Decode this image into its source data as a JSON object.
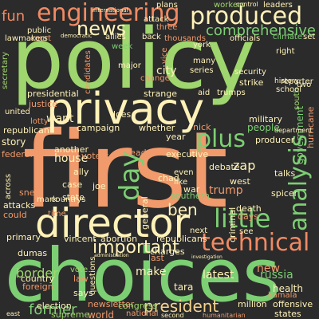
{
  "wordcloud": {
    "words": [
      {
        "text": "first",
        "color": "#f19a6b"
      },
      {
        "text": "policy",
        "color": "#9fd66d"
      },
      {
        "text": "choices",
        "color": "#7ccf73"
      },
      {
        "text": "privacy",
        "color": "#fff2b8"
      },
      {
        "text": "director",
        "color": "#fff2b8"
      },
      {
        "text": "produced",
        "color": "#fff2b8"
      },
      {
        "text": "engineering",
        "color": "#f08a63"
      },
      {
        "text": "technical",
        "color": "#f08a63"
      },
      {
        "text": "little",
        "color": "#7ccf73"
      },
      {
        "text": "analysis",
        "color": "#7ccf73"
      },
      {
        "text": "important",
        "color": "#fff2b8"
      },
      {
        "text": "news",
        "color": "#fff2b8"
      },
      {
        "text": "plus",
        "color": "#7ccf73"
      },
      {
        "text": "comprehensive",
        "color": "#7ccf73"
      },
      {
        "text": "president",
        "color": "#f5d28c"
      },
      {
        "text": "day",
        "color": "#7ccf73"
      },
      {
        "text": "ben",
        "color": "#fff2b8"
      },
      {
        "text": "fun",
        "color": "#f08a63"
      },
      {
        "text": "former",
        "color": "#7ccf73"
      },
      {
        "text": "border",
        "color": "#9fd66d"
      },
      {
        "text": "house",
        "color": "#fff2b8"
      },
      {
        "text": "latest",
        "color": "#fff2b8"
      },
      {
        "text": "want",
        "color": "#fff2b8"
      },
      {
        "text": "city",
        "color": "#fff2b8"
      },
      {
        "text": "trump",
        "color": "#f19a6b"
      },
      {
        "text": "new",
        "color": "#f19a6b"
      },
      {
        "text": "make",
        "color": "#fff2b8"
      },
      {
        "text": "russia",
        "color": "#7ccf73"
      },
      {
        "text": "world",
        "color": "#f19a6b"
      },
      {
        "text": "health",
        "color": "#fff2b8"
      },
      {
        "text": "campaign",
        "color": "#fff2b8"
      },
      {
        "text": "executive",
        "color": "#fff2b8"
      },
      {
        "text": "people",
        "color": "#7ccf73"
      },
      {
        "text": "military",
        "color": "#fff2b8"
      },
      {
        "text": "strike",
        "color": "#fff2b8"
      },
      {
        "text": "story",
        "color": "#fff2b8"
      },
      {
        "text": "state",
        "color": "#fff2b8"
      },
      {
        "text": "debate",
        "color": "#fff2b8"
      },
      {
        "text": "talks",
        "color": "#fff2b8"
      },
      {
        "text": "spicer",
        "color": "#fff2b8"
      },
      {
        "text": "newsletter",
        "color": "#f19a6b"
      },
      {
        "text": "election",
        "color": "#fff2b8"
      },
      {
        "text": "supreme",
        "color": "#9fd66d"
      },
      {
        "text": "congress",
        "color": "#9fd66d"
      },
      {
        "text": "million",
        "color": "#fff2b8"
      },
      {
        "text": "states",
        "color": "#fff2b8"
      },
      {
        "text": "offensive",
        "color": "#fff2b8"
      },
      {
        "text": "national",
        "color": "#f19a6b"
      },
      {
        "text": "justice",
        "color": "#f19a6b"
      },
      {
        "text": "presidential",
        "color": "#fff2b8"
      },
      {
        "text": "officials",
        "color": "#fff2b8"
      },
      {
        "text": "security",
        "color": "#fff2b8"
      },
      {
        "text": "series",
        "color": "#fff2b8"
      },
      {
        "text": "many",
        "color": "#fff2b8"
      },
      {
        "text": "york",
        "color": "#fff2b8"
      },
      {
        "text": "back",
        "color": "#fff2b8"
      },
      {
        "text": "allies",
        "color": "#fff2b8"
      },
      {
        "text": "week",
        "color": "#7ccf73"
      },
      {
        "text": "three",
        "color": "#f19a6b"
      },
      {
        "text": "thousands",
        "color": "#f19a6b"
      },
      {
        "text": "attack",
        "color": "#fff2b8"
      },
      {
        "text": "plans",
        "color": "#fff2b8"
      },
      {
        "text": "workers",
        "color": "#9fd66d"
      },
      {
        "text": "leaders",
        "color": "#fff2b8"
      },
      {
        "text": "climate",
        "color": "#7ccf73"
      },
      {
        "text": "set",
        "color": "#fff2b8"
      },
      {
        "text": "public",
        "color": "#fff2b8"
      },
      {
        "text": "court",
        "color": "#f19a6b"
      },
      {
        "text": "lawmakers",
        "color": "#fff2b8"
      },
      {
        "text": "republican",
        "color": "#fff2b8"
      },
      {
        "text": "federal",
        "color": "#f19a6b"
      },
      {
        "text": "across",
        "color": "#fff2b8"
      },
      {
        "text": "snell",
        "color": "#f19a6b"
      },
      {
        "text": "attacks",
        "color": "#fff2b8"
      },
      {
        "text": "could",
        "color": "#f19a6b"
      },
      {
        "text": "primary",
        "color": "#fff2b8"
      },
      {
        "text": "dumas",
        "color": "#fff2b8"
      },
      {
        "text": "country",
        "color": "#fff2b8"
      },
      {
        "text": "foreign",
        "color": "#f19a6b"
      },
      {
        "text": "law",
        "color": "#f19a6b"
      },
      {
        "text": "questions",
        "color": "#fff2b8"
      },
      {
        "text": "says",
        "color": "#fff2b8"
      },
      {
        "text": "vote",
        "color": "#9fd66d"
      },
      {
        "text": "vincent",
        "color": "#fff2b8"
      },
      {
        "text": "abortion",
        "color": "#fff2b8"
      },
      {
        "text": "republicans",
        "color": "#fff2b8"
      },
      {
        "text": "charges",
        "color": "#fff2b8"
      },
      {
        "text": "last",
        "color": "#f19a6b"
      },
      {
        "text": "tara",
        "color": "#fff2b8"
      },
      {
        "text": "next",
        "color": "#fff2b8"
      },
      {
        "text": "see",
        "color": "#fff2b8"
      },
      {
        "text": "death",
        "color": "#fff2b8"
      },
      {
        "text": "days",
        "color": "#f19a6b"
      },
      {
        "text": "southern",
        "color": "#7ccf73"
      },
      {
        "text": "war",
        "color": "#fff2b8"
      },
      {
        "text": "even",
        "color": "#fff2b8"
      },
      {
        "text": "west",
        "color": "#fff2b8"
      },
      {
        "text": "chad",
        "color": "#fff2b8"
      },
      {
        "text": "like",
        "color": "#fff2b8"
      },
      {
        "text": "year",
        "color": "#fff2b8"
      },
      {
        "text": "whether",
        "color": "#fff2b8"
      },
      {
        "text": "leader",
        "color": "#f19a6b"
      },
      {
        "text": "nick",
        "color": "#f19a6b"
      },
      {
        "text": "producer",
        "color": "#fff2b8"
      },
      {
        "text": "ally",
        "color": "#fff2b8"
      },
      {
        "text": "case",
        "color": "#fff2b8"
      },
      {
        "text": "joe",
        "color": "#fff2b8"
      },
      {
        "text": "another",
        "color": "#fff2b8"
      },
      {
        "text": "voters",
        "color": "#f19a6b"
      },
      {
        "text": "does",
        "color": "#fff2b8"
      },
      {
        "text": "strange",
        "color": "#fff2b8"
      },
      {
        "text": "aid",
        "color": "#fff2b8"
      },
      {
        "text": "trumps",
        "color": "#fff2b8"
      },
      {
        "text": "major",
        "color": "#fff2b8"
      },
      {
        "text": "vice",
        "color": "#f19a6b"
      },
      {
        "text": "change",
        "color": "#f19a6b"
      },
      {
        "text": "candidates",
        "color": "#f19a6b"
      },
      {
        "text": "secretary",
        "color": "#9fd66d"
      },
      {
        "text": "united",
        "color": "#fff2b8"
      },
      {
        "text": "lotty",
        "color": "#f19a6b"
      },
      {
        "text": "reporter",
        "color": "#fff2b8"
      },
      {
        "text": "right",
        "color": "#fff2b8"
      },
      {
        "text": "time",
        "color": "#f19a6b"
      },
      {
        "text": "general",
        "color": "#fff2b8"
      },
      {
        "text": "criminal",
        "color": "#fff2b8"
      },
      {
        "text": "kamala",
        "color": "#f19a6b"
      },
      {
        "text": "hurricane",
        "color": "#f19a6b"
      },
      {
        "text": "government",
        "color": "#7ccf73"
      },
      {
        "text": "two",
        "color": "#fff2b8"
      },
      {
        "text": "south",
        "color": "#9fd66d"
      },
      {
        "text": "school",
        "color": "#fff2b8"
      },
      {
        "text": "history",
        "color": "#fff2b8"
      },
      {
        "text": "department",
        "color": "#fff2b8"
      },
      {
        "text": "zap",
        "color": "#fff2b8"
      },
      {
        "text": "mark",
        "color": "#fff2b8"
      },
      {
        "text": "countrys",
        "color": "#fff2b8"
      },
      {
        "text": "democratic",
        "color": "#fff2b8"
      },
      {
        "text": "control",
        "color": "#fff2b8"
      },
      {
        "text": "international",
        "color": "#fff2b8"
      },
      {
        "text": "second",
        "color": "#fff2b8"
      },
      {
        "text": "east",
        "color": "#fff2b8"
      },
      {
        "text": "humanitarian",
        "color": "#f19a6b"
      },
      {
        "text": "investigation",
        "color": "#fff2b8"
      },
      {
        "text": "administration",
        "color": "#fff2b8"
      }
    ]
  }
}
